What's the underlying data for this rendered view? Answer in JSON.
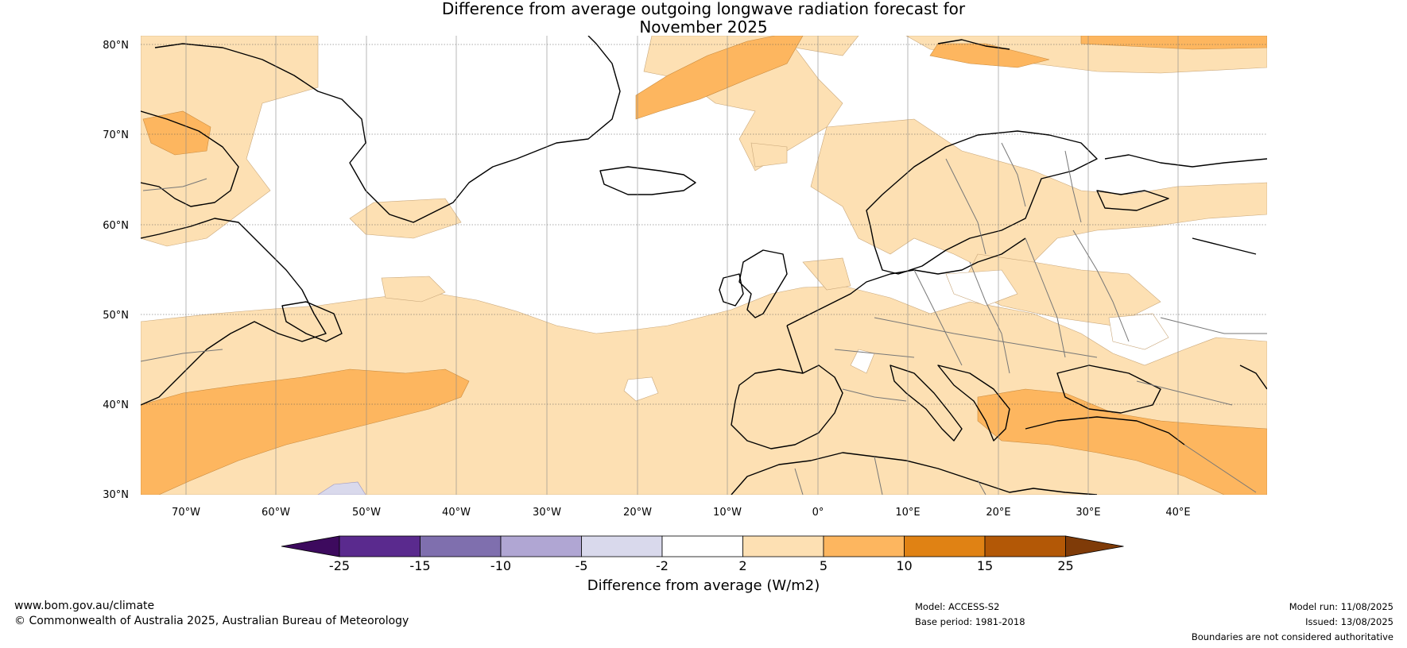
{
  "title": {
    "line1": "Difference from average outgoing longwave radiation forecast for",
    "line2": "November 2025"
  },
  "map": {
    "lat_labels": [
      "80°N",
      "70°N",
      "60°N",
      "50°N",
      "40°N",
      "30°N"
    ],
    "lon_labels": [
      "70°W",
      "60°W",
      "50°W",
      "40°W",
      "30°W",
      "20°W",
      "10°W",
      "0°",
      "10°E",
      "20°E",
      "30°E",
      "40°E"
    ]
  },
  "colorbar": {
    "ticks": [
      "-25",
      "-15",
      "-10",
      "-5",
      "-2",
      "2",
      "5",
      "10",
      "15",
      "25"
    ],
    "colors": [
      "#5a2a8e",
      "#7f6fae",
      "#b0a6d3",
      "#d9d9ec",
      "#ffffff",
      "#fde0b3",
      "#fdb65f",
      "#e08214",
      "#b35806"
    ],
    "under_color": "#3d0a5e",
    "over_color": "#7f3b08",
    "label": "Difference from average (W/m2)"
  },
  "footer": {
    "website": "www.bom.gov.au/climate",
    "copyright": "© Commonwealth of Australia 2025, Australian Bureau of Meteorology",
    "model": "Model: ACCESS-S2",
    "base_period": "Base period: 1981-2018",
    "model_run": "Model run: 11/08/2025",
    "issued": "Issued: 13/08/2025",
    "disclaimer": "Boundaries are not considered authoritative"
  }
}
